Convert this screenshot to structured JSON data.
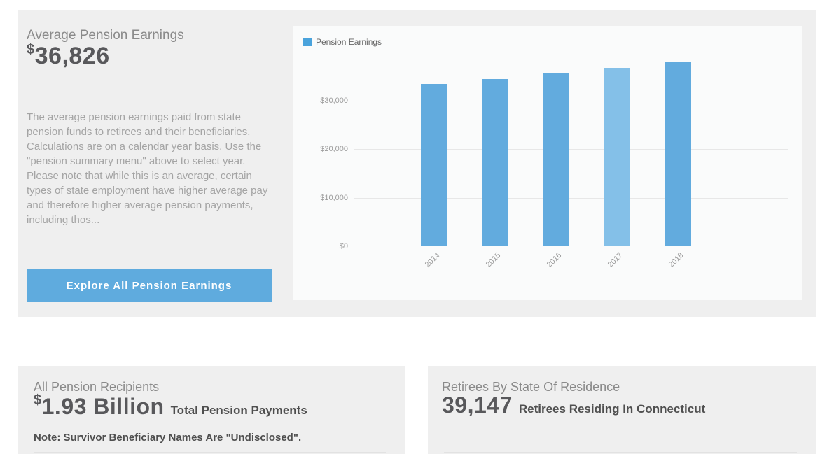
{
  "left_panel": {
    "title": "Average Pension Earnings",
    "currency_symbol": "$",
    "value": "36,826",
    "description": "The average pension earnings paid from state pension funds to retirees and their beneficiaries. Calculations are on a calendar year basis. Use the \"pension summary menu\" above to select year. Please note that while this is an average, certain types of state employment have higher average pay and therefore higher average pension payments, including thos...",
    "button_label": "Explore All Pension Earnings"
  },
  "chart_data": {
    "type": "bar",
    "title": "",
    "legend": {
      "label": "Pension Earnings",
      "color": "#4aa3dc"
    },
    "legend_position": "top-left",
    "categories": [
      "2014",
      "2015",
      "2016",
      "2017",
      "2018"
    ],
    "values": [
      33500,
      34450,
      35700,
      36826,
      38000
    ],
    "highlighted_index": 3,
    "bar_color": "#62abde",
    "highlight_color": "#84c0e8",
    "yticks": [
      {
        "label": "$0",
        "value": 0
      },
      {
        "label": "$10,000",
        "value": 10000
      },
      {
        "label": "$20,000",
        "value": 20000
      },
      {
        "label": "$30,000",
        "value": 30000
      }
    ],
    "ylim": [
      0,
      40000
    ],
    "grid": true,
    "xlabel": "",
    "ylabel": ""
  },
  "bottom_left_panel": {
    "title": "All Pension Recipients",
    "currency_symbol": "$",
    "value": "1.93 Billion",
    "value_suffix": "Total Pension Payments",
    "note": "Note: Survivor Beneficiary Names Are \"Undisclosed\"."
  },
  "bottom_right_panel": {
    "title": "Retirees By State Of Residence",
    "value": "39,147",
    "value_suffix": "Retirees Residing In Connecticut"
  },
  "colors": {
    "page_background": "#ffffff",
    "panel_background": "#efefef",
    "chart_card_background": "#fafbfb",
    "bar": "#62abde",
    "bar_highlight": "#84c0e8",
    "button": "#5fabde",
    "title_text": "#8a8a8a",
    "value_text": "#58585b"
  }
}
